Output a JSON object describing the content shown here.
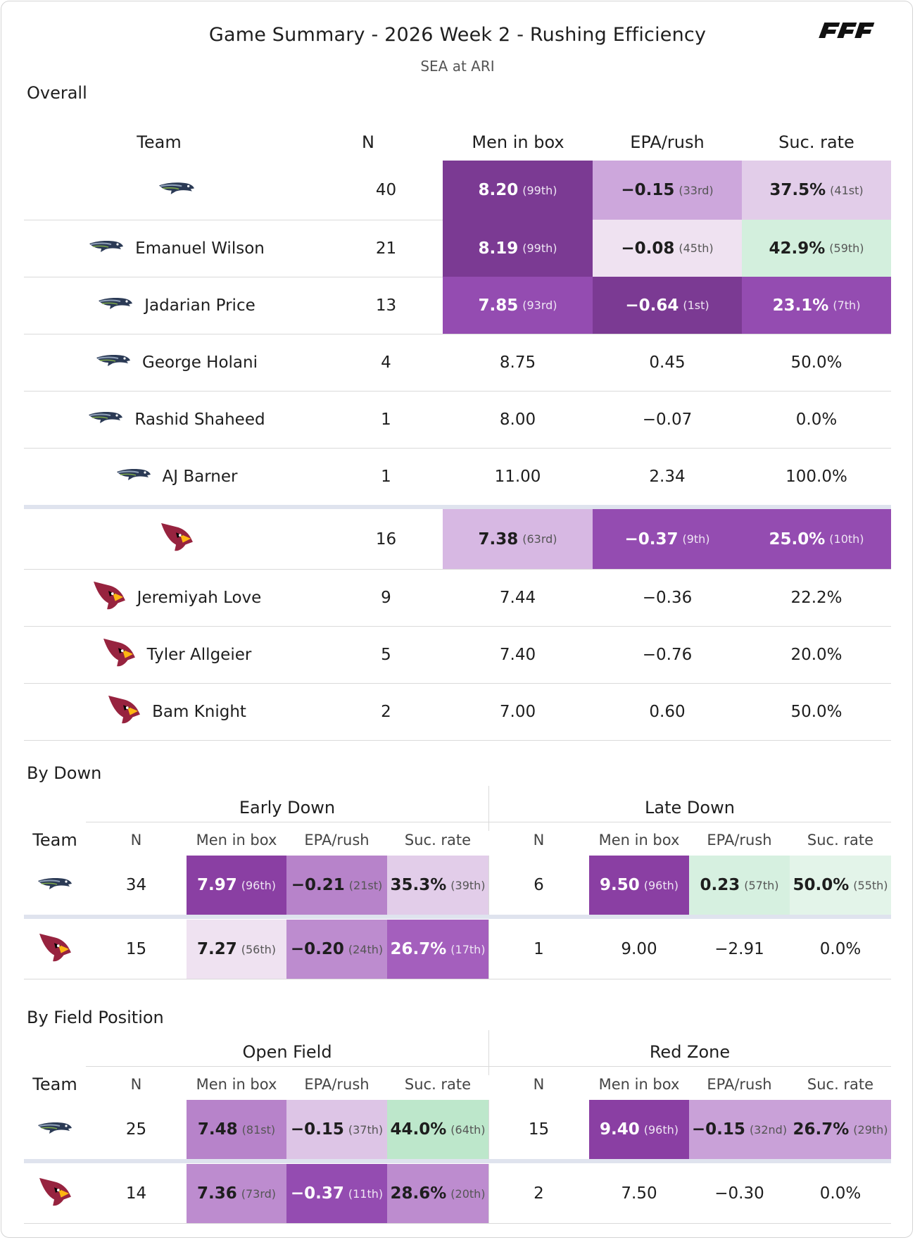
{
  "header": {
    "title": "Game Summary - 2026 Week 2 - Rushing Efficiency",
    "subtitle": "SEA at ARI",
    "brand": "PFF"
  },
  "colors": {
    "purple_darkest": "#7b3a93",
    "purple_dark": "#8a3fa3",
    "purple_mid": "#9a4fb3",
    "purple_med": "#b07bc6",
    "purple_light": "#cda7dc",
    "purple_pale": "#e2cde9",
    "purple_faint": "#efe2f1",
    "green_light": "#cdeedb",
    "green_pale": "#dff2e6",
    "green_mid": "#b9e6c9",
    "row_sep": "#dfe3ee"
  },
  "chart_data": [
    {
      "type": "table",
      "title": "Overall",
      "columns": [
        "Team",
        "N",
        "Men in box",
        "EPA/rush",
        "Suc. rate"
      ],
      "rows": [
        {
          "team": "SEA",
          "label": "",
          "logo": "seahawks-icon",
          "n": "40",
          "mib": "8.20",
          "mib_rank": "(99th)",
          "epa": "−0.15",
          "epa_rank": "(33rd)",
          "suc": "37.5%",
          "suc_rank": "(41st)",
          "colors": [
            "#7b3a93",
            "#cda7dc",
            "#e2cde9"
          ]
        },
        {
          "team": "SEA",
          "label": "Emanuel Wilson",
          "logo": "seahawks-icon",
          "n": "21",
          "mib": "8.19",
          "mib_rank": "(99th)",
          "epa": "−0.08",
          "epa_rank": "(45th)",
          "suc": "42.9%",
          "suc_rank": "(59th)",
          "colors": [
            "#7b3a93",
            "#efe2f1",
            "#d3efdd"
          ]
        },
        {
          "team": "SEA",
          "label": "Jadarian Price",
          "logo": "seahawks-icon",
          "n": "13",
          "mib": "7.85",
          "mib_rank": "(93rd)",
          "epa": "−0.64",
          "epa_rank": "(1st)",
          "suc": "23.1%",
          "suc_rank": "(7th)",
          "colors": [
            "#944cb1",
            "#7b3a93",
            "#944cb1"
          ]
        },
        {
          "team": "SEA",
          "label": "George Holani",
          "logo": "seahawks-icon",
          "n": "4",
          "mib": "8.75",
          "mib_rank": "",
          "epa": "0.45",
          "epa_rank": "",
          "suc": "50.0%",
          "suc_rank": "",
          "colors": [
            "",
            "",
            ""
          ]
        },
        {
          "team": "SEA",
          "label": "Rashid Shaheed",
          "logo": "seahawks-icon",
          "n": "1",
          "mib": "8.00",
          "mib_rank": "",
          "epa": "−0.07",
          "epa_rank": "",
          "suc": "0.0%",
          "suc_rank": "",
          "colors": [
            "",
            "",
            ""
          ]
        },
        {
          "team": "SEA",
          "label": "AJ Barner",
          "logo": "seahawks-icon",
          "n": "1",
          "mib": "11.00",
          "mib_rank": "",
          "epa": "2.34",
          "epa_rank": "",
          "suc": "100.0%",
          "suc_rank": "",
          "colors": [
            "",
            "",
            ""
          ]
        },
        {
          "team": "ARI",
          "label": "",
          "logo": "cardinals-icon",
          "n": "16",
          "mib": "7.38",
          "mib_rank": "(63rd)",
          "epa": "−0.37",
          "epa_rank": "(9th)",
          "suc": "25.0%",
          "suc_rank": "(10th)",
          "colors": [
            "#d7b8e3",
            "#944cb1",
            "#944cb1"
          ]
        },
        {
          "team": "ARI",
          "label": "Jeremiyah Love",
          "logo": "cardinals-icon",
          "n": "9",
          "mib": "7.44",
          "mib_rank": "",
          "epa": "−0.36",
          "epa_rank": "",
          "suc": "22.2%",
          "suc_rank": "",
          "colors": [
            "",
            "",
            ""
          ]
        },
        {
          "team": "ARI",
          "label": "Tyler Allgeier",
          "logo": "cardinals-icon",
          "n": "5",
          "mib": "7.40",
          "mib_rank": "",
          "epa": "−0.76",
          "epa_rank": "",
          "suc": "20.0%",
          "suc_rank": "",
          "colors": [
            "",
            "",
            ""
          ]
        },
        {
          "team": "ARI",
          "label": "Bam Knight",
          "logo": "cardinals-icon",
          "n": "2",
          "mib": "7.00",
          "mib_rank": "",
          "epa": "0.60",
          "epa_rank": "",
          "suc": "50.0%",
          "suc_rank": "",
          "colors": [
            "",
            "",
            ""
          ]
        }
      ]
    },
    {
      "type": "table",
      "title": "By Down",
      "groups": [
        "Early Down",
        "Late Down"
      ],
      "columns": [
        "Team",
        "N",
        "Men in box",
        "EPA/rush",
        "Suc. rate"
      ],
      "rows": [
        {
          "team": "SEA",
          "logo": "seahawks-icon",
          "g1": {
            "n": "34",
            "mib": "7.97",
            "mib_rank": "(96th)",
            "epa": "−0.21",
            "epa_rank": "(21st)",
            "suc": "35.3%",
            "suc_rank": "(39th)",
            "colors": [
              "#8a3fa3",
              "#b783ca",
              "#e2cde9"
            ]
          },
          "g2": {
            "n": "6",
            "mib": "9.50",
            "mib_rank": "(96th)",
            "epa": "0.23",
            "epa_rank": "(57th)",
            "suc": "50.0%",
            "suc_rank": "(55th)",
            "colors": [
              "#8a3fa3",
              "#d6f0e0",
              "#e3f4e9"
            ]
          }
        },
        {
          "team": "ARI",
          "logo": "cardinals-icon",
          "g1": {
            "n": "15",
            "mib": "7.27",
            "mib_rank": "(56th)",
            "epa": "−0.20",
            "epa_rank": "(24th)",
            "suc": "26.7%",
            "suc_rank": "(17th)",
            "colors": [
              "#efe2f1",
              "#bd8ccf",
              "#a45fbd"
            ]
          },
          "g2": {
            "n": "1",
            "mib": "9.00",
            "mib_rank": "",
            "epa": "−2.91",
            "epa_rank": "",
            "suc": "0.0%",
            "suc_rank": "",
            "colors": [
              "",
              "",
              ""
            ]
          }
        }
      ]
    },
    {
      "type": "table",
      "title": "By Field Position",
      "groups": [
        "Open Field",
        "Red Zone"
      ],
      "columns": [
        "Team",
        "N",
        "Men in box",
        "EPA/rush",
        "Suc. rate"
      ],
      "rows": [
        {
          "team": "SEA",
          "logo": "seahawks-icon",
          "g1": {
            "n": "25",
            "mib": "7.48",
            "mib_rank": "(81st)",
            "epa": "−0.15",
            "epa_rank": "(37th)",
            "suc": "44.0%",
            "suc_rank": "(64th)",
            "colors": [
              "#b783ca",
              "#ddc5e6",
              "#bde7cb"
            ]
          },
          "g2": {
            "n": "15",
            "mib": "9.40",
            "mib_rank": "(96th)",
            "epa": "−0.15",
            "epa_rank": "(32nd)",
            "suc": "26.7%",
            "suc_rank": "(29th)",
            "colors": [
              "#8a3fa3",
              "#c9a1d8",
              "#c9a1d8"
            ]
          }
        },
        {
          "team": "ARI",
          "logo": "cardinals-icon",
          "g1": {
            "n": "14",
            "mib": "7.36",
            "mib_rank": "(73rd)",
            "epa": "−0.37",
            "epa_rank": "(11th)",
            "suc": "28.6%",
            "suc_rank": "(20th)",
            "colors": [
              "#bd8ccf",
              "#944cb1",
              "#bd8ccf"
            ]
          },
          "g2": {
            "n": "2",
            "mib": "7.50",
            "mib_rank": "",
            "epa": "−0.30",
            "epa_rank": "",
            "suc": "0.0%",
            "suc_rank": "",
            "colors": [
              "",
              "",
              ""
            ]
          }
        }
      ]
    }
  ]
}
